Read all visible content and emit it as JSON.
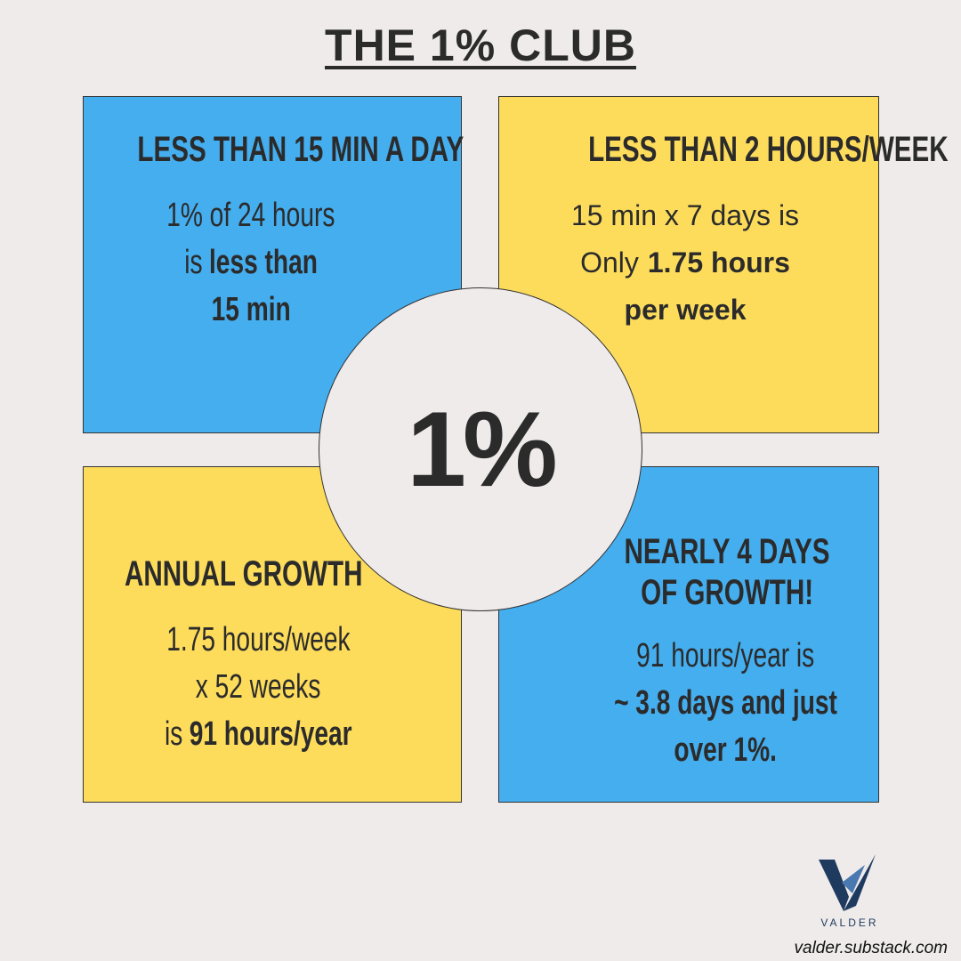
{
  "header": {
    "title": "THE 1% CLUB"
  },
  "center": {
    "label": "1%"
  },
  "quadrants": [
    {
      "title": [
        "LESS THAN 15 MIN A DAY"
      ],
      "lines": [
        {
          "regular": "1% of 24 hours"
        },
        {
          "regular": "is",
          "bold": "less than"
        },
        {
          "bold": "15 min"
        }
      ]
    },
    {
      "title": [
        "LESS THAN 2 HOURS/WEEK"
      ],
      "lines": [
        {
          "regular": "15 min x 7 days is"
        },
        {
          "regular": "Only",
          "bold": "1.75 hours"
        },
        {
          "bold": "per week"
        }
      ]
    },
    {
      "title": [
        "ANNUAL GROWTH"
      ],
      "lines": [
        {
          "regular": "1.75 hours/week"
        },
        {
          "regular": "x 52 weeks"
        },
        {
          "regular": "is",
          "bold": "91 hours/year"
        }
      ]
    },
    {
      "title": [
        "NEARLY 4 DAYS",
        "OF GROWTH!"
      ],
      "lines": [
        {
          "regular": "91 hours/year is"
        },
        {
          "bold": "~ 3.8 days and just"
        },
        {
          "bold": "over 1%."
        }
      ]
    }
  ],
  "footer": {
    "brand": "VALDER",
    "url": "valder.substack.com"
  }
}
